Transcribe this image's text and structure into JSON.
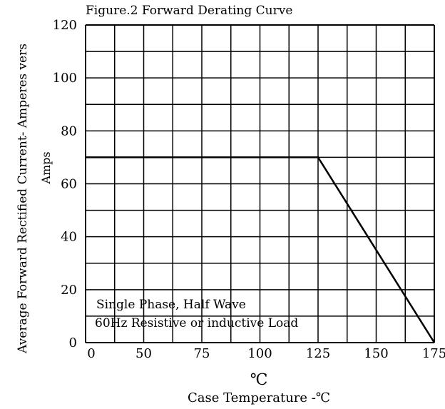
{
  "chart_data": {
    "type": "line",
    "title": "Figure.2 Forward Derating Curve",
    "ylabel_outer": "Average Forward Rectified Current- Amperes vers",
    "ylabel_inner": "Amps",
    "xlabel_unit": "℃",
    "xlabel": "Case Temperature -℃",
    "annotation_line1": "Single Phase, Half Wave",
    "annotation_line2": "60Hz Resistive or inductive Load",
    "x_ticks": [
      "0",
      "50",
      "75",
      "100",
      "125",
      "150",
      "175"
    ],
    "y_ticks": [
      "0",
      "20",
      "40",
      "60",
      "80",
      "100",
      "120"
    ],
    "xlim": [
      25,
      175
    ],
    "ylim": [
      0,
      120
    ],
    "grid": true,
    "series": [
      {
        "x": [
          25,
          125,
          175
        ],
        "y": [
          70,
          70,
          0
        ]
      }
    ]
  }
}
